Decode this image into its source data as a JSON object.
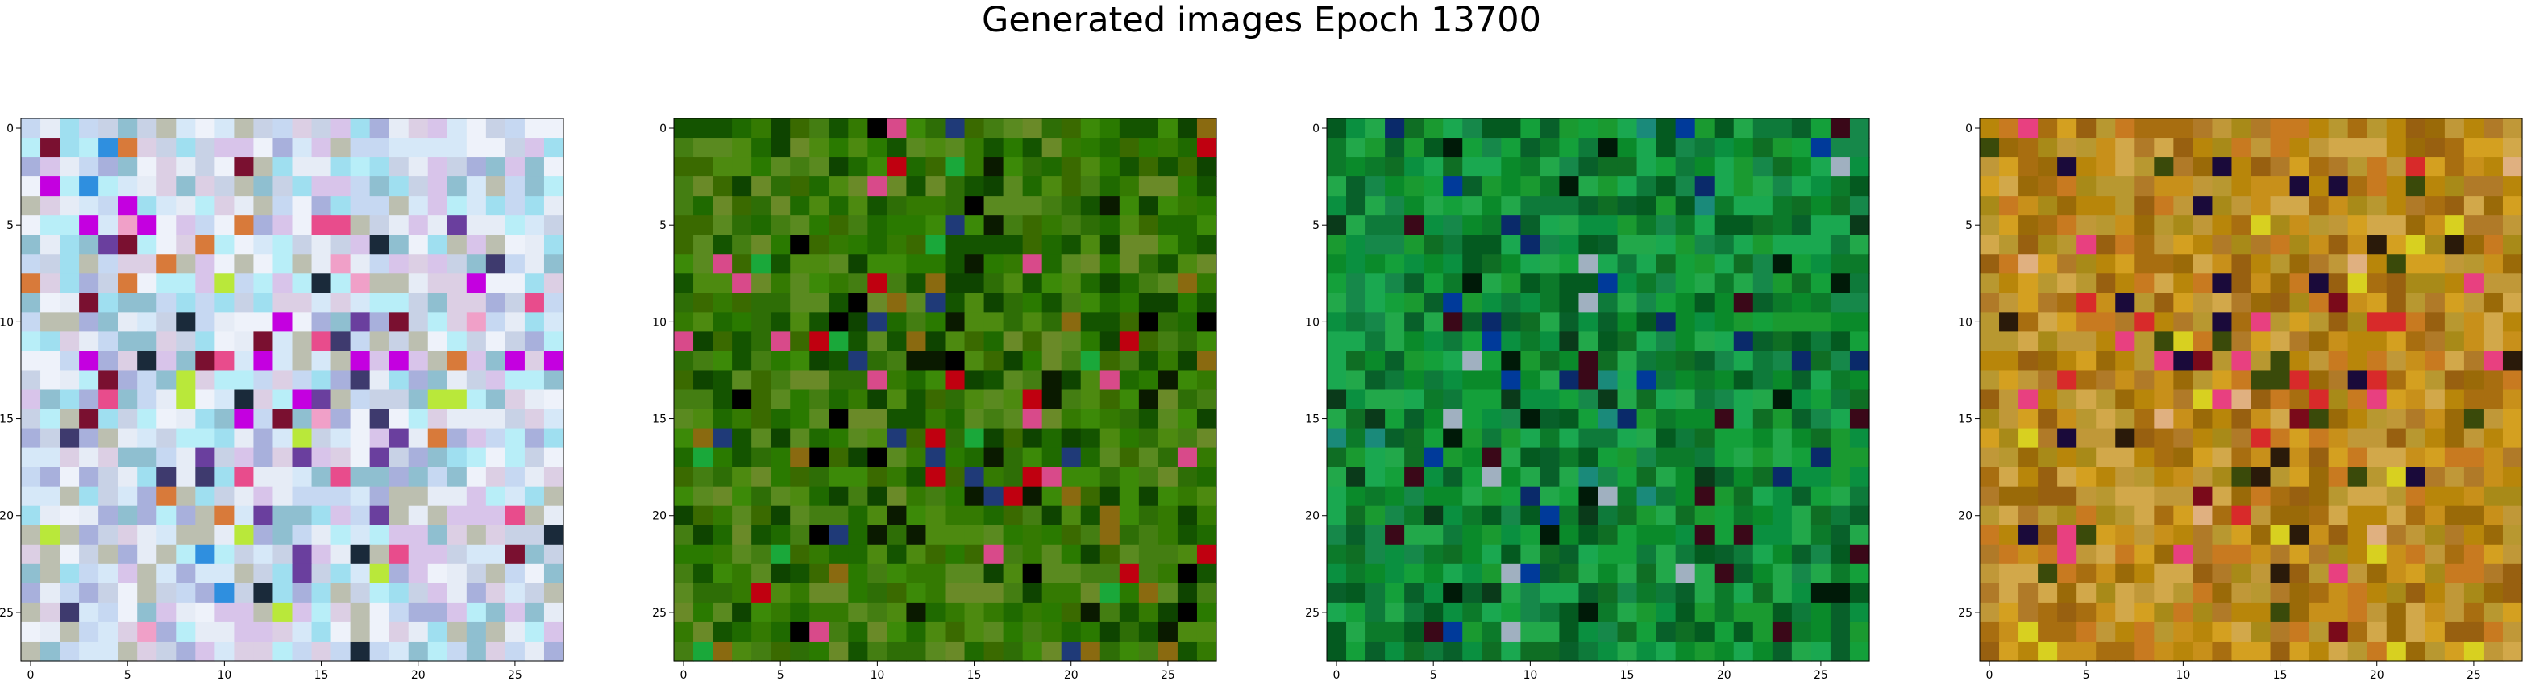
{
  "figure": {
    "title": "Generated images Epoch 13700"
  },
  "axes_common": {
    "image_size": 28,
    "xticks": [
      0,
      5,
      10,
      15,
      20,
      25
    ],
    "yticks": [
      0,
      5,
      10,
      15,
      20,
      25
    ],
    "grid": false
  },
  "panels": [
    {
      "id": "panel-1",
      "palette": [
        "#d6e8f8",
        "#b8eef8",
        "#c6d8f2",
        "#9fdff0",
        "#e6ecf6",
        "#c8d2e6",
        "#a8b0dc",
        "#d8c4ea",
        "#bcbfb0",
        "#8fbfd0",
        "#dccfe4",
        "#eef2fa"
      ],
      "accents": [
        "#6a3f9e",
        "#3e3a6e",
        "#b9e83a",
        "#e84c8c",
        "#c400e0",
        "#2f8fdf",
        "#7a1030",
        "#d87a3a",
        "#f0a0c8",
        "#1a2a3a"
      ]
    },
    {
      "id": "panel-2",
      "palette": [
        "#2a7a00",
        "#3c8a08",
        "#1f6a00",
        "#4d8a10",
        "#347a02",
        "#145400",
        "#5a8a20",
        "#2e6e06",
        "#447e12",
        "#0e4400",
        "#3a6a00",
        "#6a8a28"
      ],
      "accents": [
        "#000000",
        "#0a1a00",
        "#1f3a78",
        "#c00010",
        "#d84a8a",
        "#8a6a10",
        "#1aa83a"
      ]
    },
    {
      "id": "panel-3",
      "palette": [
        "#0a8a2a",
        "#14a03a",
        "#0c7a2a",
        "#1aa850",
        "#0f6e24",
        "#08602a",
        "#22a84a",
        "#0a9040",
        "#16884a",
        "#045a20",
        "#1a9a30",
        "#0e7a3a"
      ],
      "accents": [
        "#001a08",
        "#0a2a6a",
        "#003a9a",
        "#3a0818",
        "#1a8a7a",
        "#0a3a1a",
        "#a0b0c0"
      ]
    },
    {
      "id": "panel-4",
      "palette": [
        "#b8860a",
        "#c8901a",
        "#a86e10",
        "#d4a020",
        "#b07a28",
        "#9a6a08",
        "#c09838",
        "#a88a18",
        "#c87a20",
        "#b89830",
        "#986010",
        "#d2a84a"
      ],
      "accents": [
        "#7a0a1a",
        "#1a0a3a",
        "#d82a2a",
        "#e0b080",
        "#2a1a0a",
        "#e84080",
        "#3a4a0a",
        "#d8d020"
      ]
    }
  ]
}
